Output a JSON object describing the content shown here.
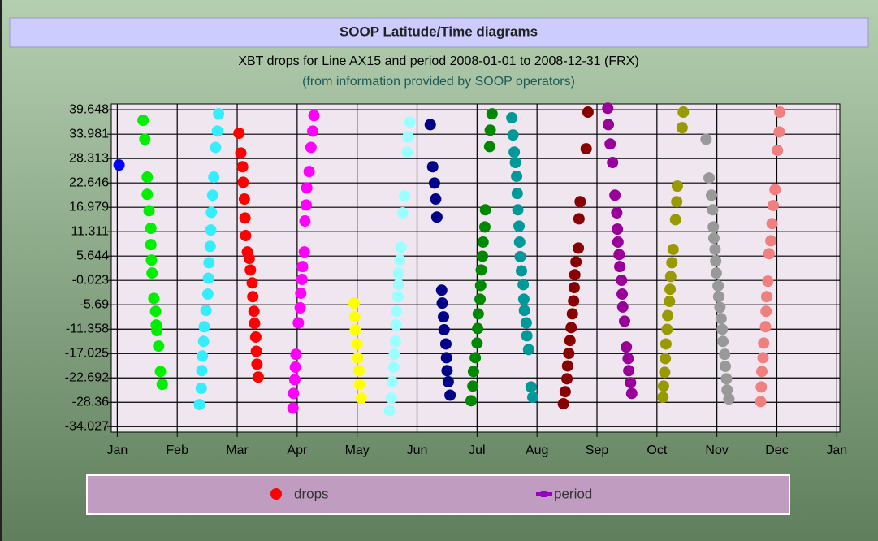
{
  "header": {
    "title": "SOOP Latitude/Time diagrams"
  },
  "chart_data": {
    "type": "scatter",
    "title": "XBT drops for Line AX15 and period 2008-01-01 to 2008-12-31 (FRX)",
    "subtitle": "(from information provided by SOOP operators)",
    "xlim": [
      -0.1,
      12.05
    ],
    "ylim": [
      -35.3,
      41.0
    ],
    "xticks": [
      {
        "value": 0,
        "label": "Jan"
      },
      {
        "value": 1,
        "label": "Feb"
      },
      {
        "value": 2,
        "label": "Mar"
      },
      {
        "value": 3,
        "label": "Apr"
      },
      {
        "value": 4,
        "label": "May"
      },
      {
        "value": 5,
        "label": "Jun"
      },
      {
        "value": 6,
        "label": "Jul"
      },
      {
        "value": 7,
        "label": "Aug"
      },
      {
        "value": 8,
        "label": "Sep"
      },
      {
        "value": 9,
        "label": "Oct"
      },
      {
        "value": 10,
        "label": "Nov"
      },
      {
        "value": 11,
        "label": "Dec"
      },
      {
        "value": 12,
        "label": "Jan"
      }
    ],
    "yticks": [
      39.648,
      33.981,
      28.313,
      22.646,
      16.979,
      11.311,
      5.644,
      -0.023,
      -5.69,
      -11.358,
      -17.025,
      -22.692,
      -28.36,
      -34.027
    ],
    "grid": true,
    "legend": [
      {
        "label": "drops",
        "color": "#ff0000",
        "marker": "circle"
      },
      {
        "label": "period",
        "color": "#9900cc",
        "marker": "line"
      }
    ],
    "series": [
      {
        "color": "#0000ff",
        "x": [
          0.03
        ],
        "values": [
          26.8
        ]
      },
      {
        "color": "#00ee00",
        "x": [
          0.43,
          0.46,
          0.5,
          0.5,
          0.53,
          0.56,
          0.56,
          0.57,
          0.58,
          0.61,
          0.64,
          0.65,
          0.66,
          0.69,
          0.72,
          0.75
        ],
        "values": [
          37.2,
          32.8,
          24.0,
          20.0,
          16.2,
          12.1,
          8.3,
          4.7,
          1.7,
          -4.2,
          -7.2,
          -10.4,
          -11.7,
          -15.3,
          -21.2,
          -24.2
        ]
      },
      {
        "color": "#33eeff",
        "x": [
          1.37,
          1.4,
          1.41,
          1.42,
          1.44,
          1.45,
          1.48,
          1.51,
          1.52,
          1.53,
          1.55,
          1.56,
          1.57,
          1.59,
          1.61,
          1.64,
          1.67,
          1.69
        ],
        "values": [
          -28.9,
          -25.1,
          -21.0,
          -17.6,
          -14.2,
          -10.8,
          -7.0,
          -3.2,
          0.5,
          4.1,
          7.9,
          11.7,
          15.8,
          19.8,
          24.0,
          30.9,
          34.7,
          38.7
        ]
      },
      {
        "color": "#ff0000",
        "x": [
          2.03,
          2.06,
          2.09,
          2.1,
          2.12,
          2.13,
          2.14,
          2.17,
          2.2,
          2.22,
          2.25,
          2.26,
          2.28,
          2.29,
          2.31,
          2.32,
          2.33,
          2.35
        ],
        "values": [
          34.2,
          29.6,
          26.4,
          22.8,
          18.9,
          14.5,
          10.4,
          6.6,
          5.1,
          2.4,
          -0.6,
          -3.8,
          -7.2,
          -10.0,
          -13.2,
          -16.5,
          -19.5,
          -22.5
        ]
      },
      {
        "color": "#ff00ff",
        "x": [
          2.93,
          2.94,
          2.96,
          2.97,
          2.98,
          3.02,
          3.05,
          3.06,
          3.08,
          3.09,
          3.12,
          3.13,
          3.15,
          3.16,
          3.2,
          3.23,
          3.26,
          3.28
        ],
        "values": [
          -29.7,
          -26.3,
          -23.1,
          -20.2,
          -17.2,
          -9.9,
          -6.4,
          -3.0,
          0.2,
          3.2,
          6.6,
          13.8,
          17.5,
          21.5,
          25.3,
          30.9,
          34.7,
          38.3
        ]
      },
      {
        "color": "#ffff00",
        "x": [
          3.95,
          3.96,
          3.97,
          4.0,
          4.01,
          4.03,
          4.04,
          4.07
        ],
        "values": [
          -5.3,
          -8.5,
          -11.5,
          -14.8,
          -18.0,
          -21.0,
          -24.2,
          -27.4
        ]
      },
      {
        "color": "#99ffff",
        "x": [
          4.54,
          4.57,
          4.59,
          4.61,
          4.62,
          4.64,
          4.65,
          4.66,
          4.68,
          4.69,
          4.69,
          4.71,
          4.73,
          4.76,
          4.79,
          4.84,
          4.85,
          4.88
        ],
        "values": [
          -30.3,
          -27.4,
          -23.6,
          -20.2,
          -17.2,
          -14.2,
          -10.4,
          -7.2,
          -3.8,
          -1.0,
          1.7,
          4.7,
          7.7,
          15.7,
          19.6,
          29.8,
          33.4,
          36.8
        ]
      },
      {
        "color": "#000088",
        "x": [
          5.22,
          5.26,
          5.29,
          5.31,
          5.33,
          5.41,
          5.42,
          5.44,
          5.45,
          5.48,
          5.49,
          5.5,
          5.52,
          5.55
        ],
        "values": [
          36.2,
          26.4,
          22.6,
          18.9,
          14.7,
          -2.3,
          -5.3,
          -8.5,
          -11.5,
          -14.8,
          -18.0,
          -21.0,
          -23.6,
          -26.7
        ]
      },
      {
        "color": "#008800",
        "x": [
          5.9,
          5.93,
          5.94,
          5.97,
          6.0,
          6.01,
          6.02,
          6.05,
          6.06,
          6.07,
          6.09,
          6.1,
          6.13,
          6.14,
          6.21,
          6.22,
          6.25
        ],
        "values": [
          -28.0,
          -24.6,
          -21.2,
          -18.0,
          -14.6,
          -11.2,
          -7.8,
          -4.4,
          -1.2,
          2.4,
          5.6,
          8.9,
          12.4,
          16.4,
          31.1,
          34.9,
          38.7
        ]
      },
      {
        "color": "#009999",
        "x": [
          6.58,
          6.6,
          6.62,
          6.64,
          6.66,
          6.67,
          6.68,
          6.7,
          6.71,
          6.72,
          6.74,
          6.77,
          6.78,
          6.79,
          6.82,
          6.83,
          6.86,
          6.9,
          6.93
        ],
        "values": [
          37.8,
          33.8,
          29.8,
          27.4,
          24.2,
          20.2,
          16.4,
          12.6,
          8.9,
          5.5,
          2.2,
          -1.0,
          -4.4,
          -7.0,
          -9.9,
          -12.9,
          -16.1,
          -24.8,
          -27.2
        ]
      },
      {
        "color": "#880000",
        "x": [
          7.44,
          7.47,
          7.5,
          7.51,
          7.53,
          7.55,
          7.57,
          7.59,
          7.61,
          7.62,
          7.63,
          7.65,
          7.69,
          7.7,
          7.72,
          7.82,
          7.85
        ],
        "values": [
          -28.7,
          -25.9,
          -22.9,
          -19.9,
          -17.0,
          -14.0,
          -11.0,
          -7.8,
          -4.8,
          -1.7,
          1.3,
          4.3,
          7.5,
          14.3,
          18.3,
          30.6,
          39.1
        ]
      },
      {
        "color": "#990099",
        "x": [
          8.18,
          8.19,
          8.22,
          8.26,
          8.3,
          8.33,
          8.34,
          8.35,
          8.37,
          8.38,
          8.41,
          8.42,
          8.43,
          8.46,
          8.49,
          8.52,
          8.53,
          8.56,
          8.58
        ],
        "values": [
          40.0,
          36.2,
          31.7,
          27.4,
          19.8,
          15.7,
          11.9,
          8.9,
          6.0,
          3.2,
          0.0,
          -3.2,
          -6.2,
          -9.5,
          -15.5,
          -18.2,
          -21.0,
          -23.8,
          -26.3
        ]
      },
      {
        "color": "#999900",
        "x": [
          9.1,
          9.11,
          9.13,
          9.14,
          9.15,
          9.17,
          9.18,
          9.21,
          9.22,
          9.23,
          9.25,
          9.27,
          9.31,
          9.33,
          9.34,
          9.42,
          9.44
        ],
        "values": [
          -27.2,
          -24.6,
          -21.4,
          -18.2,
          -14.8,
          -11.4,
          -8.2,
          -4.9,
          -2.1,
          0.9,
          4.1,
          7.2,
          14.1,
          18.3,
          21.9,
          35.5,
          39.1
        ]
      },
      {
        "color": "#999999",
        "x": [
          9.82,
          9.87,
          9.91,
          9.93,
          9.94,
          9.95,
          9.97,
          9.98,
          9.99,
          10.02,
          10.03,
          10.05,
          10.07,
          10.09,
          10.1,
          10.13,
          10.14,
          10.16,
          10.17,
          10.2
        ],
        "values": [
          32.8,
          23.8,
          19.8,
          16.4,
          12.4,
          9.8,
          7.2,
          4.5,
          1.7,
          -1.3,
          -3.8,
          -6.3,
          -8.9,
          -11.4,
          -14.2,
          -17.2,
          -20.0,
          -22.9,
          -25.5,
          -27.6
        ]
      },
      {
        "color": "#f08080",
        "x": [
          10.73,
          10.74,
          10.75,
          10.77,
          10.78,
          10.81,
          10.82,
          10.83,
          10.85,
          10.87,
          10.9,
          10.92,
          10.94,
          10.97,
          11.01,
          11.04,
          11.05
        ],
        "values": [
          -28.2,
          -24.8,
          -21.2,
          -18.0,
          -14.6,
          -10.8,
          -7.2,
          -3.8,
          -0.2,
          6.2,
          9.2,
          13.2,
          17.4,
          21.1,
          30.2,
          34.5,
          39.1
        ]
      }
    ]
  }
}
